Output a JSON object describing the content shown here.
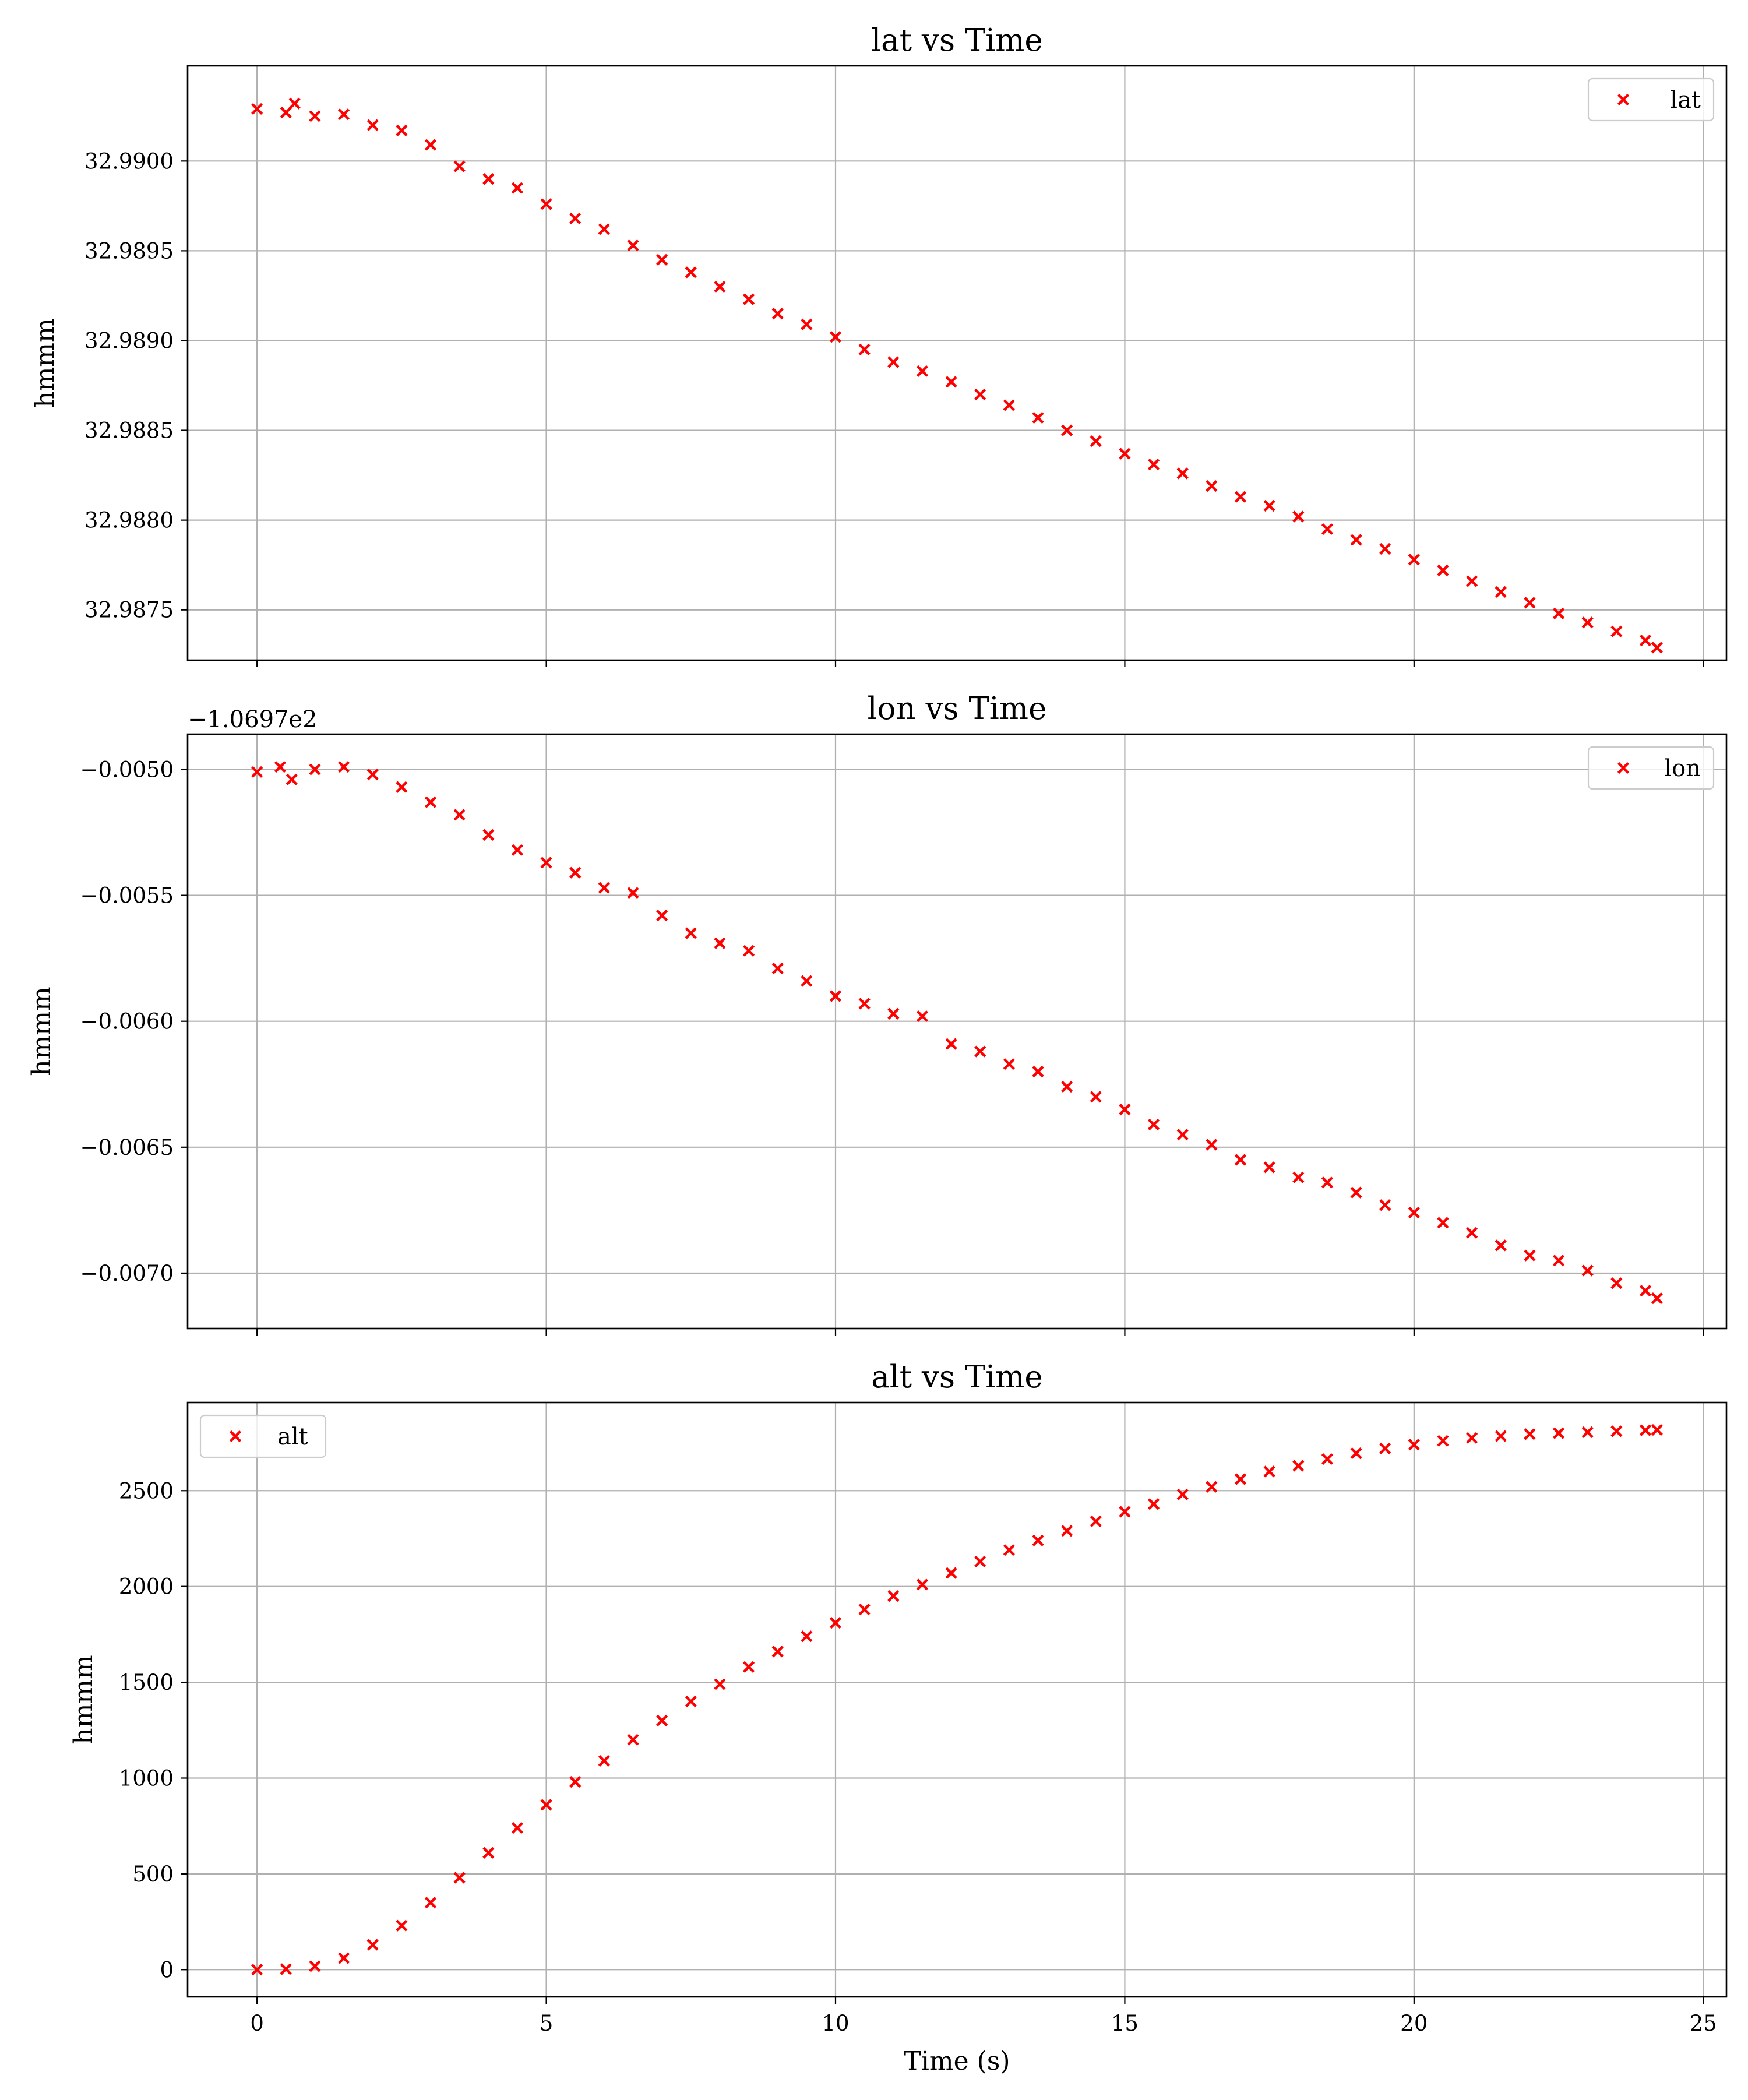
{
  "figure": {
    "marker_color": "#ff0000",
    "grid_color": "#b0b0b0",
    "shared_xlabel": "Time (s)"
  },
  "chart_data": [
    {
      "type": "scatter",
      "title": "lat vs Time",
      "ylabel": "hmmm",
      "xlabel": "",
      "legend": {
        "label": "lat",
        "position": "top-right"
      },
      "offset_text": "",
      "xlim": [
        -1.2,
        25.4
      ],
      "ylim": [
        32.98722,
        32.99053
      ],
      "xticks": [
        0,
        5,
        10,
        15,
        20,
        25
      ],
      "xtick_labels_visible": false,
      "yticks": [
        32.9875,
        32.988,
        32.9885,
        32.989,
        32.9895,
        32.99
      ],
      "ytick_labels": [
        "32.9875",
        "32.9880",
        "32.9885",
        "32.9890",
        "32.9895",
        "32.9900"
      ],
      "grid": true,
      "marker": "x",
      "series": [
        {
          "points": [
            [
              0.0,
              32.99029
            ],
            [
              0.5,
              32.99027
            ],
            [
              0.65,
              32.99032
            ],
            [
              1.0,
              32.99025
            ],
            [
              1.5,
              32.99026
            ],
            [
              2.0,
              32.9902
            ],
            [
              2.5,
              32.99017
            ],
            [
              3.0,
              32.99009
            ],
            [
              3.5,
              32.98997
            ],
            [
              4.0,
              32.9899
            ],
            [
              4.5,
              32.98985
            ],
            [
              5.0,
              32.98976
            ],
            [
              5.5,
              32.98968
            ],
            [
              6.0,
              32.98962
            ],
            [
              6.5,
              32.98953
            ],
            [
              7.0,
              32.98945
            ],
            [
              7.5,
              32.98938
            ],
            [
              8.0,
              32.9893
            ],
            [
              8.5,
              32.98923
            ],
            [
              9.0,
              32.98915
            ],
            [
              9.5,
              32.98909
            ],
            [
              10.0,
              32.98902
            ],
            [
              10.5,
              32.98895
            ],
            [
              11.0,
              32.98888
            ],
            [
              11.5,
              32.98883
            ],
            [
              12.0,
              32.98877
            ],
            [
              12.5,
              32.9887
            ],
            [
              13.0,
              32.98864
            ],
            [
              13.5,
              32.98857
            ],
            [
              14.0,
              32.9885
            ],
            [
              14.5,
              32.98844
            ],
            [
              15.0,
              32.98837
            ],
            [
              15.5,
              32.98831
            ],
            [
              16.0,
              32.98826
            ],
            [
              16.5,
              32.98819
            ],
            [
              17.0,
              32.98813
            ],
            [
              17.5,
              32.98808
            ],
            [
              18.0,
              32.98802
            ],
            [
              18.5,
              32.98795
            ],
            [
              19.0,
              32.98789
            ],
            [
              19.5,
              32.98784
            ],
            [
              20.0,
              32.98778
            ],
            [
              20.5,
              32.98772
            ],
            [
              21.0,
              32.98766
            ],
            [
              21.5,
              32.9876
            ],
            [
              22.0,
              32.98754
            ],
            [
              22.5,
              32.98748
            ],
            [
              23.0,
              32.98743
            ],
            [
              23.5,
              32.98738
            ],
            [
              24.0,
              32.98733
            ],
            [
              24.2,
              32.98729
            ]
          ]
        }
      ]
    },
    {
      "type": "scatter",
      "title": "lon vs Time",
      "ylabel": "hmmm",
      "xlabel": "",
      "legend": {
        "label": "lon",
        "position": "top-right"
      },
      "offset_text": "−1.0697e2",
      "xlim": [
        -1.2,
        25.4
      ],
      "ylim": [
        -0.00722,
        -0.00486
      ],
      "xticks": [
        0,
        5,
        10,
        15,
        20,
        25
      ],
      "xtick_labels_visible": false,
      "yticks": [
        -0.007,
        -0.0065,
        -0.006,
        -0.0055,
        -0.005
      ],
      "ytick_labels": [
        "−0.0070",
        "−0.0065",
        "−0.0060",
        "−0.0055",
        "−0.0050"
      ],
      "grid": true,
      "marker": "x",
      "series": [
        {
          "points": [
            [
              0.0,
              -0.00501
            ],
            [
              0.4,
              -0.00499
            ],
            [
              0.6,
              -0.00504
            ],
            [
              1.0,
              -0.005
            ],
            [
              1.5,
              -0.00499
            ],
            [
              2.0,
              -0.00502
            ],
            [
              2.5,
              -0.00507
            ],
            [
              3.0,
              -0.00513
            ],
            [
              3.5,
              -0.00518
            ],
            [
              4.0,
              -0.00526
            ],
            [
              4.5,
              -0.00532
            ],
            [
              5.0,
              -0.00537
            ],
            [
              5.5,
              -0.00541
            ],
            [
              6.0,
              -0.00547
            ],
            [
              6.5,
              -0.00549
            ],
            [
              7.0,
              -0.00558
            ],
            [
              7.5,
              -0.00565
            ],
            [
              8.0,
              -0.00569
            ],
            [
              8.5,
              -0.00572
            ],
            [
              9.0,
              -0.00579
            ],
            [
              9.5,
              -0.00584
            ],
            [
              10.0,
              -0.0059
            ],
            [
              10.5,
              -0.00593
            ],
            [
              11.0,
              -0.00597
            ],
            [
              11.5,
              -0.00598
            ],
            [
              12.0,
              -0.00609
            ],
            [
              12.5,
              -0.00612
            ],
            [
              13.0,
              -0.00617
            ],
            [
              13.5,
              -0.0062
            ],
            [
              14.0,
              -0.00626
            ],
            [
              14.5,
              -0.0063
            ],
            [
              15.0,
              -0.00635
            ],
            [
              15.5,
              -0.00641
            ],
            [
              16.0,
              -0.00645
            ],
            [
              16.5,
              -0.00649
            ],
            [
              17.0,
              -0.00655
            ],
            [
              17.5,
              -0.00658
            ],
            [
              18.0,
              -0.00662
            ],
            [
              18.5,
              -0.00664
            ],
            [
              19.0,
              -0.00668
            ],
            [
              19.5,
              -0.00673
            ],
            [
              20.0,
              -0.00676
            ],
            [
              20.5,
              -0.0068
            ],
            [
              21.0,
              -0.00684
            ],
            [
              21.5,
              -0.00689
            ],
            [
              22.0,
              -0.00693
            ],
            [
              22.5,
              -0.00695
            ],
            [
              23.0,
              -0.00699
            ],
            [
              23.5,
              -0.00704
            ],
            [
              24.0,
              -0.00707
            ],
            [
              24.2,
              -0.0071
            ]
          ]
        }
      ]
    },
    {
      "type": "scatter",
      "title": "alt vs Time",
      "ylabel": "hmmm",
      "xlabel": "Time (s)",
      "legend": {
        "label": "alt",
        "position": "top-left"
      },
      "offset_text": "",
      "xlim": [
        -1.2,
        25.4
      ],
      "ylim": [
        -142,
        2960
      ],
      "xticks": [
        0,
        5,
        10,
        15,
        20,
        25
      ],
      "xtick_labels_visible": true,
      "xtick_labels": [
        "0",
        "5",
        "10",
        "15",
        "20",
        "25"
      ],
      "yticks": [
        0,
        500,
        1000,
        1500,
        2000,
        2500
      ],
      "ytick_labels": [
        "0",
        "500",
        "1000",
        "1500",
        "2000",
        "2500"
      ],
      "grid": true,
      "marker": "x",
      "series": [
        {
          "points": [
            [
              0.0,
              0
            ],
            [
              0.5,
              3
            ],
            [
              1.0,
              18
            ],
            [
              1.5,
              60
            ],
            [
              2.0,
              130
            ],
            [
              2.5,
              230
            ],
            [
              3.0,
              350
            ],
            [
              3.5,
              480
            ],
            [
              4.0,
              610
            ],
            [
              4.5,
              740
            ],
            [
              5.0,
              860
            ],
            [
              5.5,
              980
            ],
            [
              6.0,
              1090
            ],
            [
              6.5,
              1200
            ],
            [
              7.0,
              1300
            ],
            [
              7.5,
              1400
            ],
            [
              8.0,
              1490
            ],
            [
              8.5,
              1580
            ],
            [
              9.0,
              1660
            ],
            [
              9.5,
              1740
            ],
            [
              10.0,
              1810
            ],
            [
              10.5,
              1880
            ],
            [
              11.0,
              1950
            ],
            [
              11.5,
              2010
            ],
            [
              12.0,
              2070
            ],
            [
              12.5,
              2130
            ],
            [
              13.0,
              2190
            ],
            [
              13.5,
              2240
            ],
            [
              14.0,
              2290
            ],
            [
              14.5,
              2340
            ],
            [
              15.0,
              2390
            ],
            [
              15.5,
              2430
            ],
            [
              16.0,
              2480
            ],
            [
              16.5,
              2520
            ],
            [
              17.0,
              2560
            ],
            [
              17.5,
              2600
            ],
            [
              18.0,
              2630
            ],
            [
              18.5,
              2665
            ],
            [
              19.0,
              2695
            ],
            [
              19.5,
              2720
            ],
            [
              20.0,
              2740
            ],
            [
              20.5,
              2760
            ],
            [
              21.0,
              2775
            ],
            [
              21.5,
              2785
            ],
            [
              22.0,
              2795
            ],
            [
              22.5,
              2800
            ],
            [
              23.0,
              2805
            ],
            [
              23.5,
              2810
            ],
            [
              24.0,
              2815
            ],
            [
              24.2,
              2817
            ]
          ]
        }
      ]
    }
  ]
}
